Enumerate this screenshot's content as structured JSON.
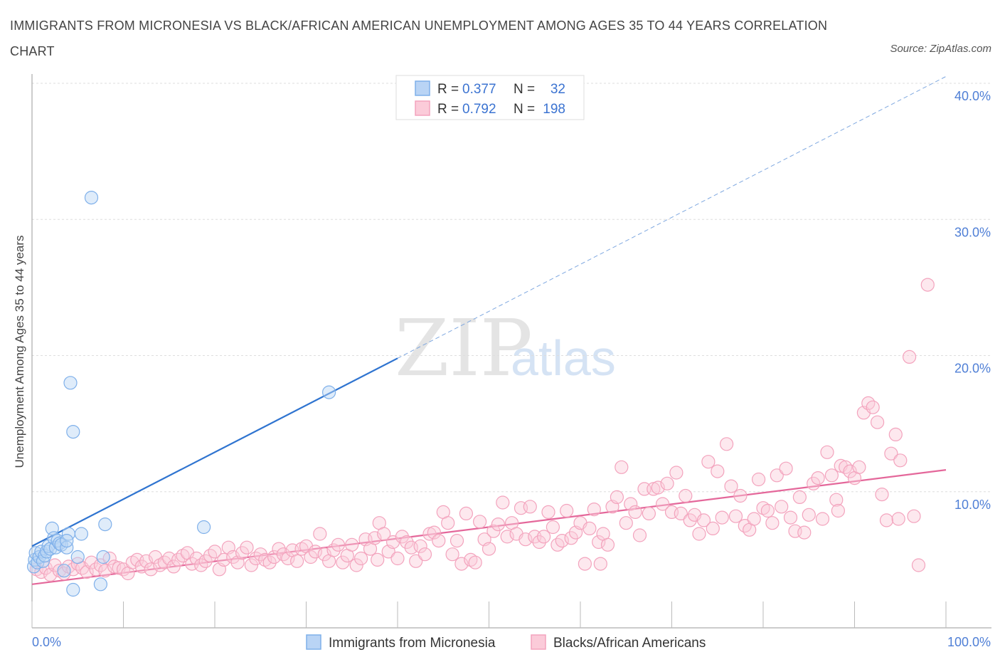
{
  "header": {
    "title": "IMMIGRANTS FROM MICRONESIA VS BLACK/AFRICAN AMERICAN UNEMPLOYMENT AMONG AGES 35 TO 44 YEARS CORRELATION CHART",
    "source": "Source: ZipAtlas.com"
  },
  "watermark": {
    "zip": "ZIP",
    "atlas": "atlas"
  },
  "legend": {
    "r_label": "R =",
    "n_label": "N =",
    "series": [
      {
        "r": "0.377",
        "n": "32"
      },
      {
        "r": "0.792",
        "n": "198"
      }
    ]
  },
  "chart_data": {
    "type": "scatter",
    "ylabel": "Unemployment Among Ages 35 to 44 years",
    "x_range": [
      0,
      100
    ],
    "y_range": [
      0,
      40
    ],
    "x_ticks": [
      "0.0%",
      "100.0%"
    ],
    "y_ticks": [
      {
        "value": 10,
        "label": "10.0%"
      },
      {
        "value": 20,
        "label": "20.0%"
      },
      {
        "value": 30,
        "label": "30.0%"
      },
      {
        "value": 40,
        "label": "40.0%"
      }
    ],
    "grid": true,
    "legend_position": "top-center",
    "series": [
      {
        "name": "Immigrants from Micronesia",
        "color": "#7fb0ea",
        "trend_color": "#2f74d0",
        "trend": {
          "x0": 0,
          "y0": 6.0,
          "x1": 40,
          "y1": 19.8,
          "extend_to": 100
        },
        "points": [
          [
            0.2,
            4.5
          ],
          [
            0.3,
            5.0
          ],
          [
            0.4,
            5.5
          ],
          [
            0.6,
            4.8
          ],
          [
            0.8,
            5.2
          ],
          [
            1.0,
            5.6
          ],
          [
            1.2,
            4.9
          ],
          [
            1.4,
            5.3
          ],
          [
            1.6,
            5.6
          ],
          [
            1.8,
            6.0
          ],
          [
            2.0,
            5.8
          ],
          [
            2.2,
            7.3
          ],
          [
            2.4,
            6.6
          ],
          [
            2.6,
            5.9
          ],
          [
            2.8,
            6.4
          ],
          [
            3.0,
            6.2
          ],
          [
            3.2,
            6.1
          ],
          [
            3.5,
            4.2
          ],
          [
            3.8,
            5.9
          ],
          [
            4.0,
            6.9
          ],
          [
            3.8,
            6.4
          ],
          [
            4.2,
            18.0
          ],
          [
            4.5,
            14.4
          ],
          [
            4.5,
            2.8
          ],
          [
            5.0,
            5.2
          ],
          [
            5.4,
            6.9
          ],
          [
            6.5,
            31.6
          ],
          [
            7.5,
            3.2
          ],
          [
            8.0,
            7.6
          ],
          [
            7.8,
            5.2
          ],
          [
            18.8,
            7.4
          ],
          [
            32.5,
            17.3
          ]
        ]
      },
      {
        "name": "Blacks/African Americans",
        "color": "#f3a3bd",
        "trend_color": "#e4679a",
        "trend": {
          "x0": 0,
          "y0": 3.2,
          "x1": 100,
          "y1": 11.6
        },
        "points": [
          [
            0.5,
            4.3
          ],
          [
            1.0,
            4.1
          ],
          [
            1.5,
            4.4
          ],
          [
            2.0,
            3.9
          ],
          [
            2.5,
            4.6
          ],
          [
            3.0,
            4.2
          ],
          [
            3.5,
            4.0
          ],
          [
            4.0,
            4.5
          ],
          [
            4.5,
            4.3
          ],
          [
            5.0,
            4.7
          ],
          [
            5.5,
            4.4
          ],
          [
            6.0,
            4.1
          ],
          [
            6.5,
            4.8
          ],
          [
            7.0,
            4.3
          ],
          [
            7.5,
            4.6
          ],
          [
            8.0,
            4.2
          ],
          [
            8.5,
            5.1
          ],
          [
            9.0,
            4.5
          ],
          [
            9.5,
            4.4
          ],
          [
            10.0,
            4.3
          ],
          [
            10.5,
            4.0
          ],
          [
            11.0,
            4.8
          ],
          [
            11.5,
            5.0
          ],
          [
            12.0,
            4.5
          ],
          [
            12.5,
            4.9
          ],
          [
            13.0,
            4.3
          ],
          [
            13.5,
            5.2
          ],
          [
            14.0,
            4.6
          ],
          [
            14.5,
            4.8
          ],
          [
            15.0,
            5.1
          ],
          [
            15.5,
            4.5
          ],
          [
            16.0,
            5.0
          ],
          [
            16.5,
            5.3
          ],
          [
            17.0,
            5.5
          ],
          [
            17.5,
            4.7
          ],
          [
            18.0,
            5.1
          ],
          [
            18.5,
            4.6
          ],
          [
            19.0,
            4.9
          ],
          [
            19.5,
            5.3
          ],
          [
            20.0,
            5.6
          ],
          [
            20.5,
            4.3
          ],
          [
            21.0,
            5.0
          ],
          [
            21.5,
            5.9
          ],
          [
            22.0,
            5.2
          ],
          [
            22.5,
            4.8
          ],
          [
            23.0,
            5.5
          ],
          [
            23.5,
            5.9
          ],
          [
            24.0,
            4.6
          ],
          [
            24.5,
            5.1
          ],
          [
            25.0,
            5.4
          ],
          [
            25.5,
            5.0
          ],
          [
            26.0,
            4.8
          ],
          [
            26.5,
            5.2
          ],
          [
            27.0,
            5.8
          ],
          [
            27.5,
            5.4
          ],
          [
            28.0,
            5.1
          ],
          [
            28.5,
            5.7
          ],
          [
            29.0,
            4.9
          ],
          [
            29.5,
            5.8
          ],
          [
            30.0,
            6.0
          ],
          [
            30.5,
            5.2
          ],
          [
            31.0,
            5.6
          ],
          [
            31.5,
            6.9
          ],
          [
            32.0,
            5.4
          ],
          [
            32.5,
            4.9
          ],
          [
            33.0,
            5.7
          ],
          [
            33.5,
            6.1
          ],
          [
            34.0,
            4.8
          ],
          [
            34.5,
            5.3
          ],
          [
            35.0,
            6.1
          ],
          [
            35.5,
            4.6
          ],
          [
            36.0,
            5.1
          ],
          [
            36.5,
            6.5
          ],
          [
            37.0,
            5.8
          ],
          [
            37.5,
            6.6
          ],
          [
            38.0,
            7.7
          ],
          [
            38.5,
            6.9
          ],
          [
            39.0,
            5.6
          ],
          [
            39.5,
            6.3
          ],
          [
            40.0,
            5.1
          ],
          [
            40.5,
            6.7
          ],
          [
            41.0,
            6.3
          ],
          [
            41.5,
            5.9
          ],
          [
            42.0,
            4.9
          ],
          [
            42.5,
            6.0
          ],
          [
            43.0,
            5.4
          ],
          [
            43.5,
            6.9
          ],
          [
            44.0,
            7.0
          ],
          [
            44.5,
            6.4
          ],
          [
            45.0,
            8.5
          ],
          [
            45.5,
            7.7
          ],
          [
            46.0,
            5.4
          ],
          [
            46.5,
            6.4
          ],
          [
            47.0,
            4.7
          ],
          [
            47.5,
            8.4
          ],
          [
            48.0,
            5.0
          ],
          [
            48.5,
            4.8
          ],
          [
            49.0,
            7.8
          ],
          [
            49.5,
            6.5
          ],
          [
            50.0,
            5.8
          ],
          [
            50.5,
            7.1
          ],
          [
            51.0,
            7.6
          ],
          [
            51.5,
            9.2
          ],
          [
            52.0,
            6.7
          ],
          [
            52.5,
            7.7
          ],
          [
            53.0,
            6.9
          ],
          [
            53.5,
            8.8
          ],
          [
            54.0,
            6.5
          ],
          [
            54.5,
            8.9
          ],
          [
            55.0,
            6.7
          ],
          [
            55.5,
            6.3
          ],
          [
            56.0,
            6.7
          ],
          [
            56.5,
            8.5
          ],
          [
            57.0,
            7.4
          ],
          [
            57.5,
            6.1
          ],
          [
            58.0,
            6.4
          ],
          [
            58.5,
            8.6
          ],
          [
            59.0,
            6.6
          ],
          [
            59.5,
            7.0
          ],
          [
            60.0,
            7.7
          ],
          [
            60.5,
            4.7
          ],
          [
            61.0,
            7.3
          ],
          [
            61.5,
            8.7
          ],
          [
            62.0,
            6.3
          ],
          [
            62.5,
            6.9
          ],
          [
            63.0,
            6.1
          ],
          [
            63.5,
            8.9
          ],
          [
            64.0,
            9.6
          ],
          [
            64.5,
            11.8
          ],
          [
            65.0,
            7.7
          ],
          [
            65.5,
            9.1
          ],
          [
            66.0,
            8.5
          ],
          [
            66.5,
            6.8
          ],
          [
            67.0,
            10.2
          ],
          [
            67.5,
            8.4
          ],
          [
            68.0,
            10.2
          ],
          [
            68.5,
            10.3
          ],
          [
            69.0,
            9.1
          ],
          [
            69.5,
            10.6
          ],
          [
            70.0,
            8.5
          ],
          [
            70.5,
            11.4
          ],
          [
            71.0,
            8.4
          ],
          [
            71.5,
            9.7
          ],
          [
            72.0,
            7.9
          ],
          [
            72.5,
            8.3
          ],
          [
            73.0,
            6.9
          ],
          [
            73.5,
            7.9
          ],
          [
            74.0,
            12.2
          ],
          [
            74.5,
            7.3
          ],
          [
            75.0,
            11.5
          ],
          [
            75.5,
            8.1
          ],
          [
            76.0,
            13.5
          ],
          [
            76.5,
            10.4
          ],
          [
            77.0,
            8.2
          ],
          [
            77.5,
            9.7
          ],
          [
            78.0,
            7.5
          ],
          [
            78.5,
            7.2
          ],
          [
            79.0,
            8.0
          ],
          [
            79.5,
            10.9
          ],
          [
            80.0,
            8.8
          ],
          [
            80.5,
            8.6
          ],
          [
            81.0,
            7.7
          ],
          [
            81.5,
            11.2
          ],
          [
            82.0,
            8.9
          ],
          [
            82.5,
            11.7
          ],
          [
            83.0,
            8.1
          ],
          [
            83.5,
            7.1
          ],
          [
            84.0,
            9.6
          ],
          [
            84.5,
            7.0
          ],
          [
            85.0,
            8.3
          ],
          [
            85.5,
            10.6
          ],
          [
            86.0,
            11.0
          ],
          [
            86.5,
            8.0
          ],
          [
            87.0,
            12.9
          ],
          [
            87.5,
            11.2
          ],
          [
            88.0,
            9.4
          ],
          [
            88.5,
            11.9
          ],
          [
            89.0,
            11.8
          ],
          [
            89.5,
            11.5
          ],
          [
            90.0,
            11.0
          ],
          [
            90.5,
            11.8
          ],
          [
            91.0,
            15.8
          ],
          [
            91.5,
            16.5
          ],
          [
            92.0,
            16.2
          ],
          [
            92.5,
            15.1
          ],
          [
            93.0,
            9.8
          ],
          [
            93.5,
            7.9
          ],
          [
            94.0,
            12.8
          ],
          [
            94.5,
            14.2
          ],
          [
            95.0,
            12.3
          ],
          [
            96.0,
            19.9
          ],
          [
            98.0,
            25.2
          ],
          [
            96.5,
            8.2
          ],
          [
            94.8,
            8.0
          ],
          [
            97.0,
            4.6
          ],
          [
            37.8,
            5.0
          ],
          [
            62.2,
            4.7
          ],
          [
            88.2,
            8.6
          ]
        ]
      }
    ]
  }
}
